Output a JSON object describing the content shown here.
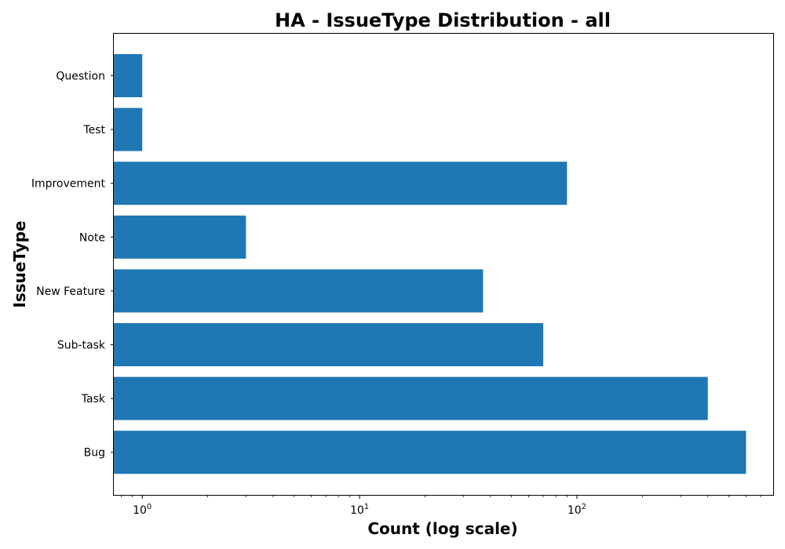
{
  "chart_data": {
    "type": "bar",
    "orientation": "horizontal",
    "title": "HA - IssueType Distribution - all",
    "xlabel": "Count (log scale)",
    "ylabel": "IssueType",
    "x_scale": "log",
    "xlim": [
      0.74,
      800
    ],
    "x_ticks": [
      {
        "value": 1,
        "base": "10",
        "exp": "0"
      },
      {
        "value": 10,
        "base": "10",
        "exp": "1"
      },
      {
        "value": 100,
        "base": "10",
        "exp": "2"
      }
    ],
    "categories": [
      "Bug",
      "Task",
      "Sub-task",
      "New Feature",
      "Note",
      "Improvement",
      "Test",
      "Question"
    ],
    "values": [
      600,
      400,
      70,
      37,
      3,
      90,
      1,
      1
    ],
    "bar_color": "#1f77b4",
    "grid": false,
    "legend": "none"
  }
}
